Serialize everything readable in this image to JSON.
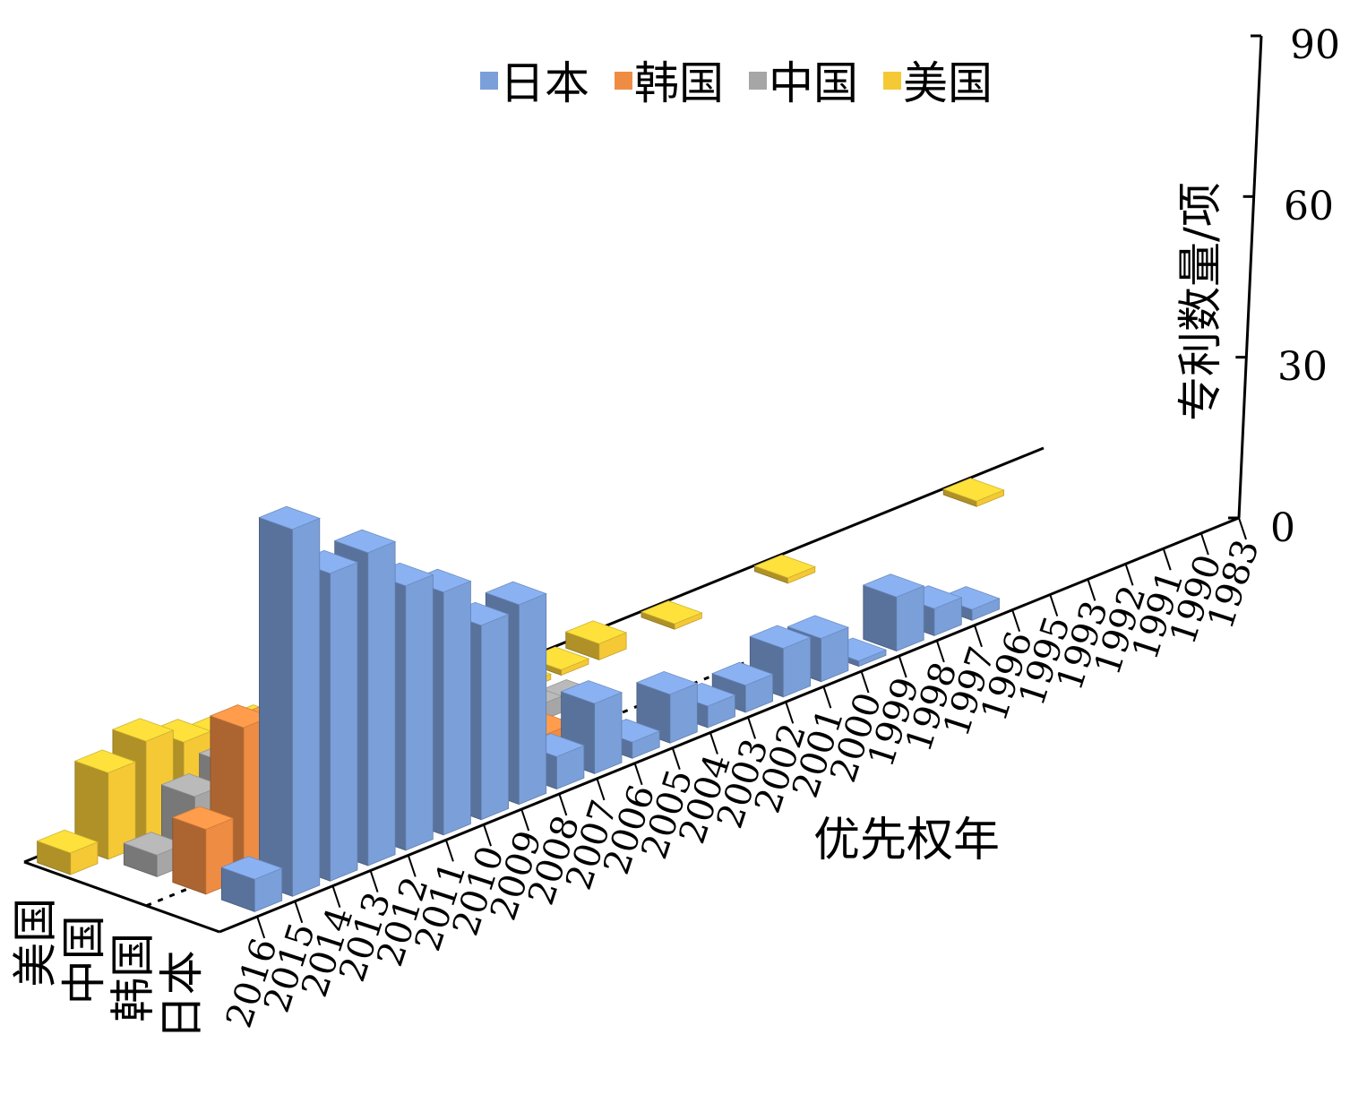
{
  "chart_data": {
    "type": "bar3d",
    "title": "",
    "legend": {
      "position": "top",
      "entries": [
        "日本",
        "韩国",
        "中国",
        "美国"
      ]
    },
    "ylabel": "专利数量/项",
    "xlabel": "优先权年",
    "ylim": [
      0,
      90
    ],
    "yticks": [
      0,
      30,
      60,
      90
    ],
    "depth_categories": [
      "日本",
      "韩国",
      "中国",
      "美国"
    ],
    "categories": [
      "2016",
      "2015",
      "2014",
      "2013",
      "2012",
      "2011",
      "2010",
      "2009",
      "2008",
      "2007",
      "2006",
      "2005",
      "2004",
      "2003",
      "2002",
      "2001",
      "2000",
      "1999",
      "1998",
      "1997",
      "1996",
      "1995",
      "1993",
      "1992",
      "1991",
      "1990",
      "1983"
    ],
    "series": [
      {
        "name": "日本",
        "color": "#7b9fd9",
        "values": [
          0,
          6,
          68,
          57,
          58,
          49,
          45,
          36,
          37,
          6,
          13,
          3,
          9,
          4,
          5,
          9,
          8,
          1,
          10,
          5,
          2,
          0,
          0,
          0,
          0,
          0,
          0
        ]
      },
      {
        "name": "韩国",
        "color": "#ef8c44",
        "values": [
          0,
          12,
          28,
          26,
          31,
          15,
          13,
          3,
          0,
          0,
          4,
          1,
          0,
          0,
          0,
          0,
          0,
          0,
          0,
          0,
          0,
          0,
          0,
          0,
          0,
          0,
          0
        ]
      },
      {
        "name": "中国",
        "color": "#a6a6a6",
        "values": [
          0,
          4,
          12,
          15,
          9,
          6,
          3,
          0,
          0,
          2,
          0,
          3,
          1,
          0,
          0,
          0,
          0,
          0,
          0,
          0,
          0,
          0,
          0,
          0,
          0,
          0,
          0
        ]
      },
      {
        "name": "美国",
        "color": "#f5c936",
        "values": [
          4,
          16,
          19,
          16,
          14,
          13,
          14,
          3,
          4,
          4,
          7,
          3,
          1,
          1,
          3,
          0,
          1,
          0,
          0,
          1,
          0,
          0,
          0,
          0,
          1,
          0,
          0
        ]
      }
    ]
  }
}
